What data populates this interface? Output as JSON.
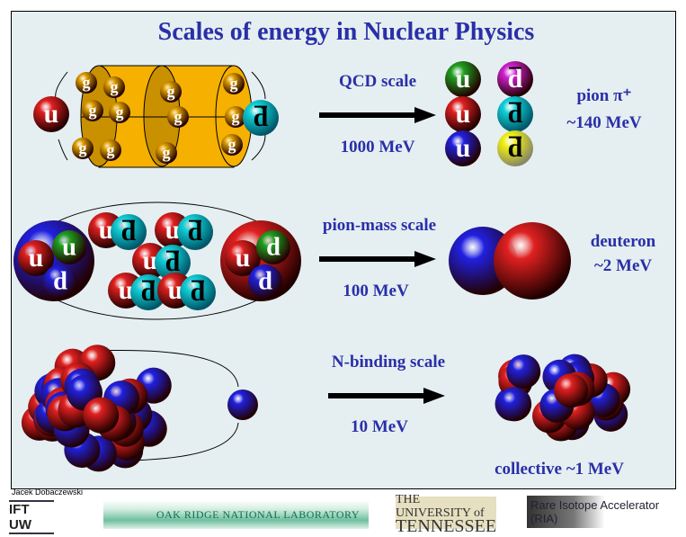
{
  "title": "Scales of energy in Nuclear Physics",
  "rows": [
    {
      "scale_label": "QCD scale",
      "energy": "1000 MeV",
      "result_name": "pion π⁺",
      "result_energy": "~140 MeV"
    },
    {
      "scale_label": "pion-mass scale",
      "energy": "100 MeV",
      "result_name": "deuteron",
      "result_energy": "~2 MeV"
    },
    {
      "scale_label": "N-binding scale",
      "energy": "10 MeV",
      "result_name": "collective ~1 MeV",
      "result_energy": ""
    }
  ],
  "quark_labels": {
    "up": "u",
    "down": "d",
    "gluon": "g"
  },
  "colors": {
    "title": "#2a2fa8",
    "proton": "#d01010",
    "neutron": "#1a1ad0",
    "gluon": "#e0a000",
    "tube": "#f5b000",
    "background": "#e5eff1"
  },
  "footer": {
    "author": "Jacek Dobaczewski",
    "logos": {
      "ift": "IFT UW",
      "ornl": "OAK RIDGE NATIONAL LABORATORY",
      "utk_line1": "THE UNIVERSITY of",
      "utk_line2": "TENNESSEE",
      "ria": "Rare Isotope Accelerator (RIA)"
    }
  }
}
